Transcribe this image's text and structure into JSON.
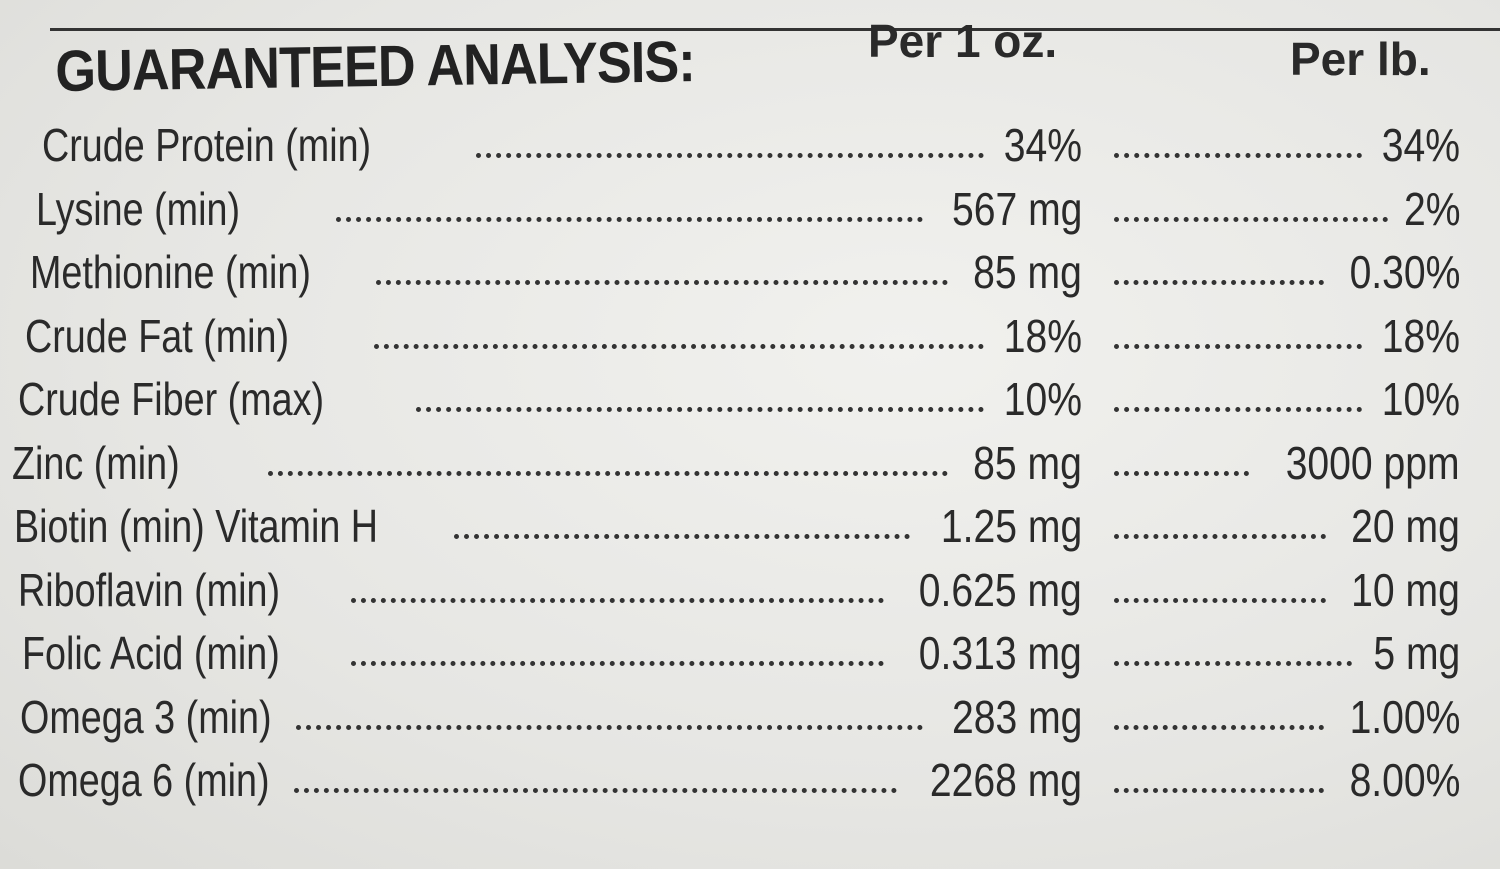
{
  "header": {
    "title": "GUARANTEED ANALYSIS:",
    "per_oz": "Per 1 oz.",
    "per_lb": "Per lb."
  },
  "rows": [
    {
      "label": "Crude Protein (min)",
      "per_oz": "34%",
      "per_lb": "34%"
    },
    {
      "label": "Lysine (min)",
      "per_oz": "567 mg",
      "per_lb": "2%"
    },
    {
      "label": "Methionine (min)",
      "per_oz": "85 mg",
      "per_lb": "0.30%"
    },
    {
      "label": "Crude Fat (min)",
      "per_oz": "18%",
      "per_lb": "18%"
    },
    {
      "label": "Crude Fiber (max)",
      "per_oz": "10%",
      "per_lb": "10%"
    },
    {
      "label": "Zinc (min)",
      "per_oz": "85 mg",
      "per_lb": "3000 ppm"
    },
    {
      "label": "Biotin (min) Vitamin H",
      "per_oz": "1.25 mg",
      "per_lb": "20 mg"
    },
    {
      "label": "Riboflavin (min)",
      "per_oz": "0.625 mg",
      "per_lb": "10 mg"
    },
    {
      "label": "Folic Acid (min)",
      "per_oz": "0.313 mg",
      "per_lb": "5 mg"
    },
    {
      "label": "Omega 3 (min)",
      "per_oz": "283 mg",
      "per_lb": "1.00%"
    },
    {
      "label": "Omega 6 (min)",
      "per_oz": "2268 mg",
      "per_lb": "8.00%"
    }
  ]
}
